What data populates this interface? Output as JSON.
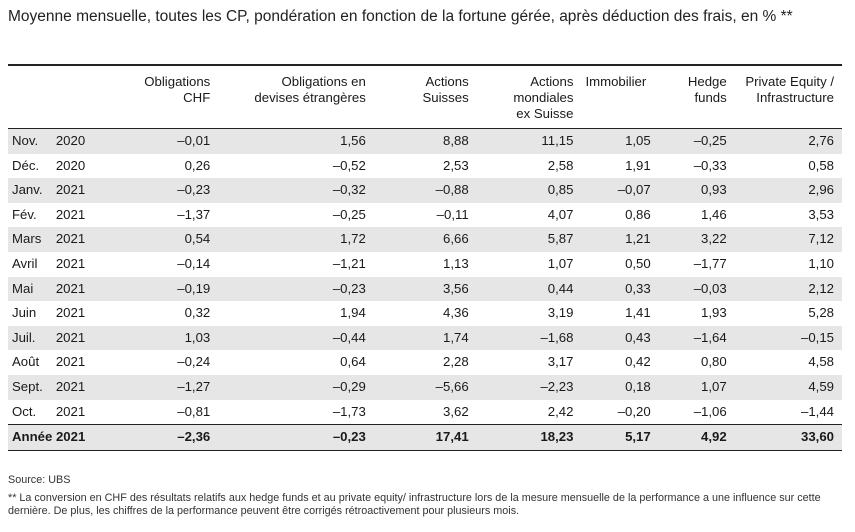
{
  "title": "Moyenne mensuelle, toutes les CP, pondération en fonction de la fortune gérée, après déduction des frais, en % **",
  "columns": [
    "Obligations\nCHF",
    "Obligations en\ndevises étrangères",
    "Actions\nSuisses",
    "Actions\nmondiales\nex Suisse",
    "Immobilier",
    "Hedge\nfunds",
    "Private Equity /\nInfrastructure"
  ],
  "rows": [
    {
      "month": "Nov.",
      "year": "2020",
      "values": [
        "–0,01",
        "1,56",
        "8,88",
        "11,15",
        "1,05",
        "–0,25",
        "2,76"
      ]
    },
    {
      "month": "Déc.",
      "year": "2020",
      "values": [
        "0,26",
        "–0,52",
        "2,53",
        "2,58",
        "1,91",
        "–0,33",
        "0,58"
      ]
    },
    {
      "month": "Janv.",
      "year": "2021",
      "values": [
        "–0,23",
        "–0,32",
        "–0,88",
        "0,85",
        "–0,07",
        "0,93",
        "2,96"
      ]
    },
    {
      "month": "Fév.",
      "year": "2021",
      "values": [
        "–1,37",
        "–0,25",
        "–0,11",
        "4,07",
        "0,86",
        "1,46",
        "3,53"
      ]
    },
    {
      "month": "Mars",
      "year": "2021",
      "values": [
        "0,54",
        "1,72",
        "6,66",
        "5,87",
        "1,21",
        "3,22",
        "7,12"
      ]
    },
    {
      "month": "Avril",
      "year": "2021",
      "values": [
        "–0,14",
        "–1,21",
        "1,13",
        "1,07",
        "0,50",
        "–1,77",
        "1,10"
      ]
    },
    {
      "month": "Mai",
      "year": "2021",
      "values": [
        "–0,19",
        "–0,23",
        "3,56",
        "0,44",
        "0,33",
        "–0,03",
        "2,12"
      ]
    },
    {
      "month": "Juin",
      "year": "2021",
      "values": [
        "0,32",
        "1,94",
        "4,36",
        "3,19",
        "1,41",
        "1,93",
        "5,28"
      ]
    },
    {
      "month": "Juil.",
      "year": "2021",
      "values": [
        "1,03",
        "–0,44",
        "1,74",
        "–1,68",
        "0,43",
        "–1,64",
        "–0,15"
      ]
    },
    {
      "month": "Août",
      "year": "2021",
      "values": [
        "–0,24",
        "0,64",
        "2,28",
        "3,17",
        "0,42",
        "0,80",
        "4,58"
      ]
    },
    {
      "month": "Sept.",
      "year": "2021",
      "values": [
        "–1,27",
        "–0,29",
        "–5,66",
        "–2,23",
        "0,18",
        "1,07",
        "4,59"
      ]
    },
    {
      "month": "Oct.",
      "year": "2021",
      "values": [
        "–0,81",
        "–1,73",
        "3,62",
        "2,42",
        "–0,20",
        "–1,06",
        "–1,44"
      ]
    }
  ],
  "total": {
    "label": "Année 2021",
    "values": [
      "–2,36",
      "–0,23",
      "17,41",
      "18,23",
      "5,17",
      "4,92",
      "33,60"
    ]
  },
  "source": "Source: UBS",
  "footnote": "** La conversion en CHF des résultats relatifs aux hedge funds et au private equity/ infrastructure lors de la mesure mensuelle de la performance a une influence sur cette dernière. De plus, les chiffres de la performance peuvent être corrigés rétroactivement pour plusieurs mois."
}
